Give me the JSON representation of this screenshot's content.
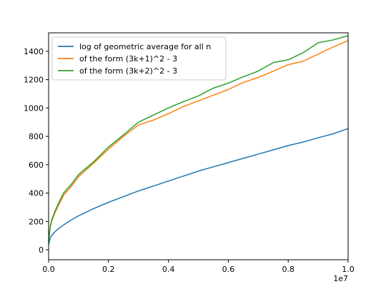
{
  "chart_data": {
    "type": "line",
    "title": "",
    "xlabel": "",
    "ylabel": "",
    "x_offset_label": "1e7",
    "xlim": [
      0,
      1.0
    ],
    "ylim": [
      -70,
      1530
    ],
    "xticks": [
      0.0,
      0.2,
      0.4,
      0.6,
      0.8,
      1.0
    ],
    "xtick_labels": [
      "0.0",
      "0.2",
      "0.4",
      "0.6",
      "0.8",
      "1.0"
    ],
    "yticks": [
      0,
      200,
      400,
      600,
      800,
      1000,
      1200,
      1400
    ],
    "ytick_labels": [
      "0",
      "200",
      "400",
      "600",
      "800",
      "1000",
      "1200",
      "1400"
    ],
    "grid": false,
    "legend_position": "top-left",
    "series": [
      {
        "name": "log of geometric average for all n",
        "color": "#1f77b4",
        "x": [
          0.0,
          0.005,
          0.01,
          0.02,
          0.03,
          0.05,
          0.075,
          0.1,
          0.15,
          0.2,
          0.25,
          0.3,
          0.35,
          0.4,
          0.45,
          0.5,
          0.55,
          0.6,
          0.65,
          0.7,
          0.75,
          0.8,
          0.85,
          0.9,
          0.95,
          1.0
        ],
        "y": [
          35,
          80,
          100,
          125,
          145,
          175,
          210,
          240,
          290,
          335,
          375,
          415,
          450,
          485,
          520,
          555,
          585,
          615,
          645,
          675,
          705,
          735,
          760,
          790,
          818,
          855
        ]
      },
      {
        "name": "of the form (3k+1)^2 - 3",
        "color": "#ff7f0e",
        "x": [
          0.0,
          0.005,
          0.01,
          0.02,
          0.03,
          0.05,
          0.075,
          0.1,
          0.15,
          0.2,
          0.25,
          0.3,
          0.35,
          0.4,
          0.45,
          0.5,
          0.55,
          0.6,
          0.65,
          0.7,
          0.75,
          0.8,
          0.85,
          0.9,
          0.95,
          1.0
        ],
        "y": [
          60,
          150,
          200,
          255,
          300,
          385,
          445,
          515,
          610,
          710,
          800,
          880,
          915,
          960,
          1010,
          1050,
          1090,
          1130,
          1180,
          1215,
          1260,
          1305,
          1330,
          1380,
          1430,
          1475
        ]
      },
      {
        "name": "of the form (3k+2)^2 - 3",
        "color": "#2ca02c",
        "x": [
          0.0,
          0.005,
          0.01,
          0.02,
          0.03,
          0.05,
          0.075,
          0.1,
          0.15,
          0.2,
          0.25,
          0.3,
          0.35,
          0.4,
          0.45,
          0.5,
          0.55,
          0.6,
          0.65,
          0.7,
          0.75,
          0.8,
          0.85,
          0.9,
          0.95,
          1.0
        ],
        "y": [
          60,
          160,
          210,
          265,
          315,
          400,
          460,
          530,
          620,
          725,
          810,
          900,
          950,
          1000,
          1045,
          1085,
          1140,
          1175,
          1220,
          1260,
          1320,
          1340,
          1390,
          1460,
          1480,
          1510
        ]
      }
    ]
  }
}
